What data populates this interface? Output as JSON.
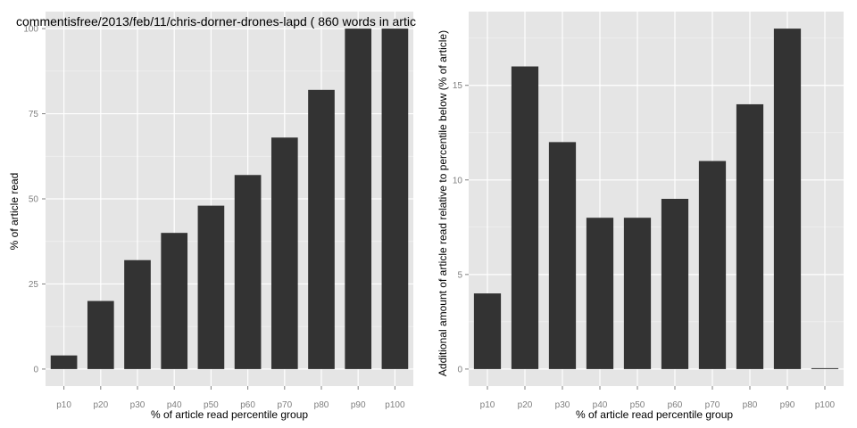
{
  "chart_data": [
    {
      "type": "bar",
      "title": "commentisfree/2013/feb/11/chris-dorner-drones-lapd ( 860 words in artic",
      "xlabel": "% of article read percentile group",
      "ylabel": "% of article read",
      "categories": [
        "p10",
        "p20",
        "p30",
        "p40",
        "p50",
        "p60",
        "p70",
        "p80",
        "p90",
        "p100"
      ],
      "values": [
        4,
        20,
        32,
        40,
        48,
        57,
        68,
        82,
        100,
        100
      ],
      "ylim": [
        -5,
        105
      ],
      "yticks": [
        0,
        25,
        50,
        75,
        100
      ],
      "ytick_labels": [
        "0",
        "25",
        "50",
        "75",
        "100"
      ],
      "grid": true,
      "colors": {
        "bar": "#333333",
        "panel": "#e5e5e5",
        "grid": "#ffffff"
      }
    },
    {
      "type": "bar",
      "title": "",
      "xlabel": "% of article read percentile group",
      "ylabel": "Additional amount of article read relative to percentile below (% of article)",
      "categories": [
        "p10",
        "p20",
        "p30",
        "p40",
        "p50",
        "p60",
        "p70",
        "p80",
        "p90",
        "p100"
      ],
      "values": [
        4,
        16,
        12,
        8,
        8,
        9,
        11,
        14,
        18,
        0
      ],
      "ylim": [
        -0.9,
        18.9
      ],
      "yticks": [
        0,
        5,
        10,
        15
      ],
      "ytick_labels": [
        "0",
        "5",
        "10",
        "15"
      ],
      "grid": true,
      "colors": {
        "bar": "#333333",
        "panel": "#e5e5e5",
        "grid": "#ffffff"
      }
    }
  ]
}
